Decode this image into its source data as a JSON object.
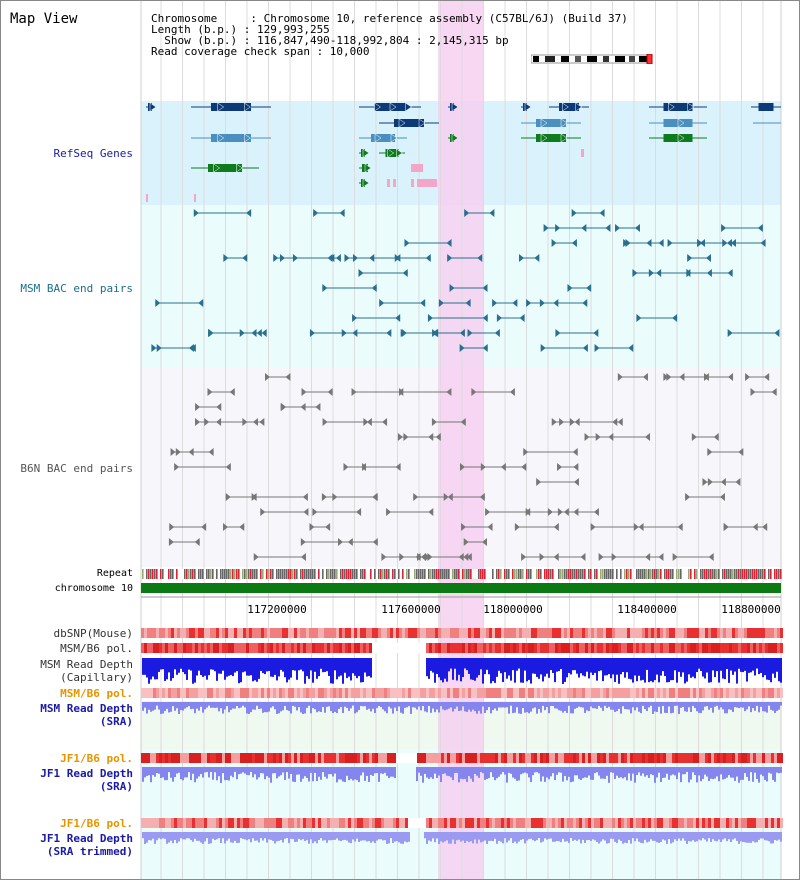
{
  "title": "Map View",
  "header": {
    "line1": "Chromosome     : Chromosome 10, reference assembly (C57BL/6J) (Build 37)",
    "line2": "Length (b.p.) : 129,993,255",
    "line3": "  Show (b.p.) : 116,847,490-118,992,804 : 2,145,315 bp",
    "line4": "Read coverage check span : 10,000"
  },
  "tracks": {
    "refseq_label": "RefSeq Genes",
    "msm_bac_label": "MSM BAC end pairs",
    "b6n_bac_label": "B6N BAC end pairs",
    "repeat_label": "Repeat",
    "chromosome_label": "chromosome 10",
    "dbsnp_label": "dbSNP(Mouse)",
    "msm_b6_pol_label": "MSM/B6 pol.",
    "msm_read_depth_cap_line1": "MSM Read Depth",
    "msm_read_depth_cap_line2": "(Capillary)",
    "msm_b6_pol2_label": "MSM/B6 pol.",
    "msm_read_depth_sra_line1": "MSM Read Depth",
    "msm_read_depth_sra_line2": "(SRA)",
    "jf1_b6_pol_label": "JF1/B6 pol.",
    "jf1_read_depth_sra_line1": "JF1 Read Depth",
    "jf1_read_depth_sra_line2": "(SRA)",
    "jf1_b6_pol2_label": "JF1/B6 pol.",
    "jf1_read_depth_trim_line1": "JF1 Read Depth",
    "jf1_read_depth_trim_line2": "(SRA trimmed)"
  },
  "axis": {
    "tick1": "117200000",
    "tick2": "117600000",
    "tick3": "118000000",
    "tick4": "118400000",
    "tick5": "118800000"
  },
  "colors": {
    "refseq_bg": "#daf2fc",
    "gene_dark": "#0c3a78",
    "gene_mid": "#4a8fbf",
    "gene_green": "#0f7a1e",
    "gene_pink": "#f4a6c8",
    "msm_bac_line": "#2a6f8f",
    "b6n_bac_line": "#777777",
    "highlight": "#f6d0f0",
    "red_band": "#e83030",
    "blue_depth": "#1515e0",
    "light_blue_depth": "#8888ee",
    "orange_label": "#e69500",
    "blue_label": "#1a1aa8"
  }
}
